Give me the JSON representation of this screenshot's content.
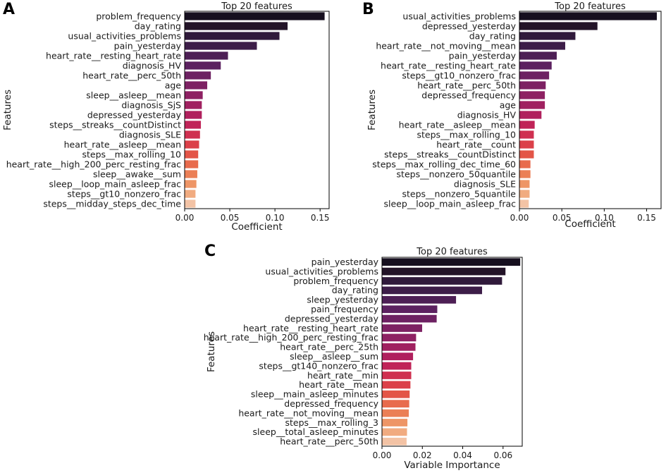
{
  "figure": {
    "background": "#ffffff"
  },
  "chart_data": [
    {
      "panel": "A",
      "type": "bar",
      "orientation": "horizontal",
      "title": "Top 20 features",
      "xlabel": "Coefficient",
      "ylabel": "Features",
      "xlim": [
        0,
        0.16
      ],
      "xticks": [
        0.0,
        0.05,
        0.1,
        0.15
      ],
      "xtick_labels": [
        "0.00",
        "0.05",
        "0.10",
        "0.15"
      ],
      "palette": "rocket",
      "categories": [
        "problem_frequency",
        "day_rating",
        "usual_activities_problems",
        "pain_yesterday",
        "heart_rate__resting_heart_rate",
        "diagnosis_HV",
        "heart_rate__perc_50th",
        "age",
        "sleep__asleep__mean",
        "diagnosis_SjS",
        "depressed_yesterday",
        "steps__streaks__countDistinct",
        "diagnosis_SLE",
        "heart_rate__asleep__mean",
        "steps__max_rolling_10",
        "heart_rate__high_200_perc_resting_frac",
        "sleep__awake__sum",
        "sleep__loop_main_asleep_frac",
        "steps__gt10_nonzero_frac",
        "steps__midday_steps_dec_time"
      ],
      "values": [
        0.155,
        0.114,
        0.105,
        0.08,
        0.048,
        0.04,
        0.029,
        0.025,
        0.02,
        0.019,
        0.019,
        0.018,
        0.017,
        0.016,
        0.015,
        0.015,
        0.014,
        0.013,
        0.012,
        0.012
      ]
    },
    {
      "panel": "B",
      "type": "bar",
      "orientation": "horizontal",
      "title": "Top 20 features",
      "xlabel": "Coefficient",
      "ylabel": "Features",
      "xlim": [
        0,
        0.167
      ],
      "xticks": [
        0.0,
        0.05,
        0.1,
        0.15
      ],
      "xtick_labels": [
        "0.00",
        "0.05",
        "0.10",
        "0.15"
      ],
      "palette": "rocket",
      "categories": [
        "usual_activities_problems",
        "depressed_yesterday",
        "day_rating",
        "heart_rate__not_moving__mean",
        "pain_yesterday",
        "heart_rate__resting_heart_rate",
        "steps__gt10_nonzero_frac",
        "heart_rate__perc_50th",
        "depressed_frequency",
        "age",
        "diagnosis_HV",
        "heart_rate__asleep__mean",
        "steps__max_rolling_10",
        "heart_rate__count",
        "steps__streaks__countDistinct",
        "steps__max_rolling_dec_time_60",
        "steps__nonzero_50quantile",
        "diagnosis_SLE",
        "steps__nonzero_5quantile",
        "sleep__loop_main_asleep_frac"
      ],
      "values": [
        0.162,
        0.092,
        0.066,
        0.054,
        0.044,
        0.038,
        0.035,
        0.031,
        0.03,
        0.03,
        0.026,
        0.018,
        0.017,
        0.017,
        0.017,
        0.013,
        0.013,
        0.012,
        0.012,
        0.011
      ]
    },
    {
      "panel": "C",
      "type": "bar",
      "orientation": "horizontal",
      "title": "Top 20 features",
      "xlabel": "Variable Importance",
      "ylabel": "Features",
      "xlim": [
        0,
        0.0695
      ],
      "xticks": [
        0.0,
        0.02,
        0.04,
        0.06
      ],
      "xtick_labels": [
        "0.00",
        "0.02",
        "0.04",
        "0.06"
      ],
      "palette": "rocket",
      "categories": [
        "pain_yesterday",
        "usual_activities_problems",
        "problem_frequency",
        "day_rating",
        "sleep_yesterday",
        "pain_frequency",
        "depressed_yesterday",
        "heart_rate__resting_heart_rate",
        "heart_rate__high_200_perc_resting_frac",
        "heart_rate__perc_25th",
        "sleep__asleep__sum",
        "steps__gt140_nonzero_frac",
        "heart_rate__min",
        "heart_rate__mean",
        "sleep__main_asleep_minutes",
        "depressed_frequency",
        "heart_rate__not_moving__mean",
        "steps__max_rolling_3",
        "sleep__total_asleep_minutes",
        "heart_rate__perc_50th"
      ],
      "values": [
        0.0685,
        0.0612,
        0.0595,
        0.0496,
        0.0367,
        0.0274,
        0.0271,
        0.0199,
        0.0169,
        0.0166,
        0.0154,
        0.0145,
        0.0145,
        0.0141,
        0.0137,
        0.0135,
        0.0133,
        0.0126,
        0.0124,
        0.0122
      ]
    }
  ],
  "panel_letters": [
    "A",
    "B",
    "C"
  ],
  "bar_colors": [
    "#160f1f",
    "#231428",
    "#301a3b",
    "#3d1d48",
    "#4d1f55",
    "#5c2160",
    "#6d2162",
    "#7d2163",
    "#8e2163",
    "#a02160",
    "#b0205d",
    "#c02458",
    "#cf3050",
    "#db4049",
    "#e35547",
    "#e86b4d",
    "#eb7f56",
    "#ee9566",
    "#f1ab80",
    "#f3c3a5"
  ]
}
